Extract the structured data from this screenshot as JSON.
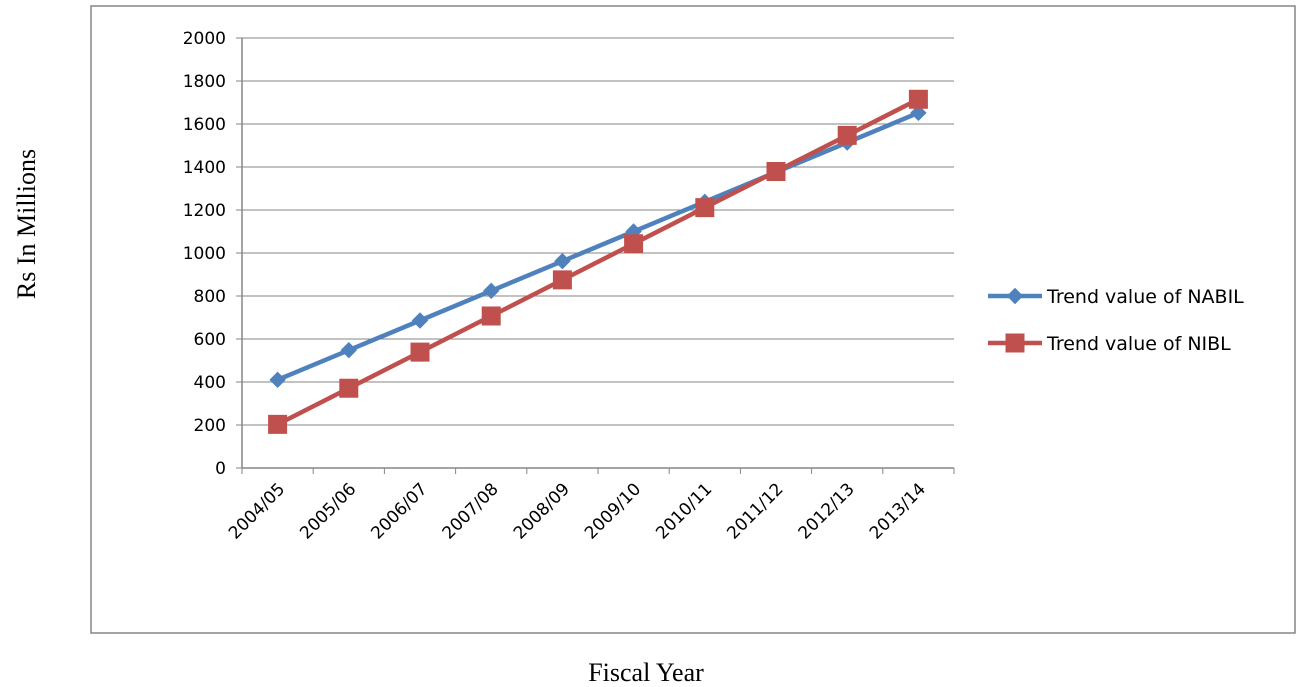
{
  "chart_data": {
    "type": "line",
    "xlabel": "Fiscal Year",
    "ylabel": "Rs In Millions",
    "ylim": [
      0,
      2000
    ],
    "yticks": [
      0,
      200,
      400,
      600,
      800,
      1000,
      1200,
      1400,
      1600,
      1800,
      2000
    ],
    "grid": "horizontal",
    "legend": "right",
    "categories": [
      "2004/05",
      "2005/06",
      "2006/07",
      "2007/08",
      "2008/09",
      "2009/10",
      "2010/11",
      "2011/12",
      "2012/13",
      "2013/14"
    ],
    "series": [
      {
        "name": "Trend value of NABIL",
        "color": "#4F81BD",
        "marker": "diamond",
        "values": [
          410,
          548,
          686,
          824,
          962,
          1100,
          1238,
          1376,
          1514,
          1652
        ]
      },
      {
        "name": "Trend value of NIBL",
        "color": "#C0504D",
        "marker": "square",
        "values": [
          203,
          371,
          539,
          707,
          875,
          1043,
          1211,
          1379,
          1547,
          1715
        ]
      }
    ]
  }
}
